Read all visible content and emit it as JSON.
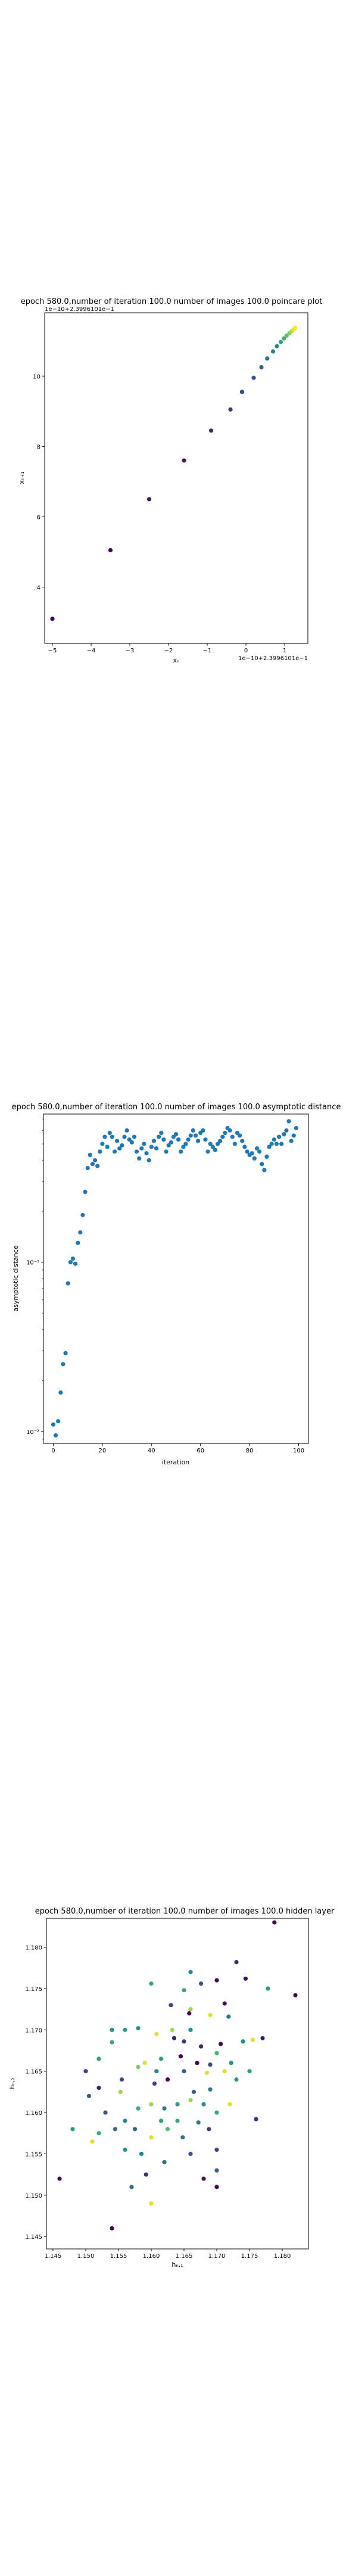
{
  "page": {
    "background": "#ffffff"
  },
  "chart_data": [
    {
      "type": "scatter",
      "title": "epoch 580.0,number of iteration 100.0  number of images 100.0 poincare plot",
      "xlabel": "xₙ",
      "ylabel": "xₙ₊₁",
      "x_offset_label": "1e−10+2.3996101e−1",
      "y_offset_label": "1e−10+2.3996101e−1",
      "xlim": [
        -5.2,
        1.6
      ],
      "ylim": [
        2.4,
        11.8
      ],
      "xticks": [
        -5,
        -4,
        -3,
        -2,
        -1,
        0,
        1
      ],
      "yticks": [
        4,
        6,
        8,
        10
      ],
      "colormap": [
        "#440154",
        "#3b528b",
        "#21918c",
        "#5ec962",
        "#fde725"
      ],
      "points": [
        {
          "x": -5.0,
          "y": 3.1,
          "c": 0.0
        },
        {
          "x": -3.5,
          "y": 5.05,
          "c": 0.02
        },
        {
          "x": -2.5,
          "y": 6.5,
          "c": 0.05
        },
        {
          "x": -1.6,
          "y": 7.6,
          "c": 0.08
        },
        {
          "x": -0.9,
          "y": 8.45,
          "c": 0.12
        },
        {
          "x": -0.4,
          "y": 9.05,
          "c": 0.18
        },
        {
          "x": -0.1,
          "y": 9.55,
          "c": 0.22
        },
        {
          "x": 0.2,
          "y": 9.95,
          "c": 0.28
        },
        {
          "x": 0.4,
          "y": 10.25,
          "c": 0.33
        },
        {
          "x": 0.55,
          "y": 10.5,
          "c": 0.38
        },
        {
          "x": 0.7,
          "y": 10.7,
          "c": 0.44
        },
        {
          "x": 0.8,
          "y": 10.85,
          "c": 0.5
        },
        {
          "x": 0.9,
          "y": 10.97,
          "c": 0.57
        },
        {
          "x": 0.98,
          "y": 11.07,
          "c": 0.64
        },
        {
          "x": 1.05,
          "y": 11.15,
          "c": 0.72
        },
        {
          "x": 1.12,
          "y": 11.22,
          "c": 0.8
        },
        {
          "x": 1.18,
          "y": 11.28,
          "c": 0.88
        },
        {
          "x": 1.23,
          "y": 11.33,
          "c": 0.95
        },
        {
          "x": 1.27,
          "y": 11.37,
          "c": 1.0
        }
      ]
    },
    {
      "type": "scatter",
      "title": "epoch 580.0,number of iteration 100.0  number of images 100.0 asymptotic distance",
      "xlabel": "iteration",
      "ylabel": "asymptotic distance",
      "yscale": "log",
      "xlim": [
        -4,
        104
      ],
      "ylim": [
        0.0085,
        0.75
      ],
      "xticks": [
        0,
        20,
        40,
        60,
        80,
        100
      ],
      "yticks": [
        {
          "v": 0.01,
          "label": "10⁻²"
        },
        {
          "v": 0.1,
          "label": "10⁻¹"
        }
      ],
      "color": "#1f77b4",
      "x": [
        0,
        1,
        2,
        3,
        4,
        5,
        6,
        7,
        8,
        9,
        10,
        11,
        12,
        13,
        14,
        15,
        16,
        17,
        18,
        19,
        20,
        21,
        22,
        23,
        24,
        25,
        26,
        27,
        28,
        29,
        30,
        31,
        32,
        33,
        34,
        35,
        36,
        37,
        38,
        39,
        40,
        41,
        42,
        43,
        44,
        45,
        46,
        47,
        48,
        49,
        50,
        51,
        52,
        53,
        54,
        55,
        56,
        57,
        58,
        59,
        60,
        61,
        62,
        63,
        64,
        65,
        66,
        67,
        68,
        69,
        70,
        71,
        72,
        73,
        74,
        75,
        76,
        77,
        78,
        79,
        80,
        81,
        82,
        83,
        84,
        85,
        86,
        87,
        88,
        89,
        90,
        91,
        92,
        93,
        94,
        95,
        96,
        97,
        98,
        99
      ],
      "y": [
        0.011,
        0.0095,
        0.0115,
        0.017,
        0.025,
        0.029,
        0.075,
        0.1,
        0.105,
        0.098,
        0.13,
        0.15,
        0.19,
        0.26,
        0.36,
        0.43,
        0.38,
        0.4,
        0.37,
        0.45,
        0.5,
        0.55,
        0.48,
        0.58,
        0.55,
        0.45,
        0.52,
        0.47,
        0.49,
        0.55,
        0.6,
        0.53,
        0.51,
        0.55,
        0.45,
        0.41,
        0.47,
        0.5,
        0.44,
        0.4,
        0.48,
        0.52,
        0.47,
        0.55,
        0.58,
        0.53,
        0.45,
        0.49,
        0.51,
        0.55,
        0.57,
        0.53,
        0.45,
        0.48,
        0.5,
        0.53,
        0.56,
        0.6,
        0.56,
        0.52,
        0.58,
        0.6,
        0.53,
        0.45,
        0.5,
        0.48,
        0.46,
        0.5,
        0.52,
        0.55,
        0.58,
        0.62,
        0.6,
        0.55,
        0.5,
        0.58,
        0.56,
        0.52,
        0.48,
        0.45,
        0.43,
        0.44,
        0.41,
        0.47,
        0.45,
        0.38,
        0.35,
        0.42,
        0.48,
        0.5,
        0.53,
        0.5,
        0.55,
        0.5,
        0.57,
        0.6,
        0.68,
        0.52,
        0.56,
        0.62
      ]
    },
    {
      "type": "scatter",
      "title": "epoch 580.0,number of iteration 100.0  number of images 100.0 hidden layer",
      "xlabel": "hₙ,₁",
      "ylabel": "hₙ,₂",
      "xlim": [
        1.144,
        1.184
      ],
      "ylim": [
        1.1435,
        1.1835
      ],
      "xticks": [
        1.145,
        1.15,
        1.155,
        1.16,
        1.165,
        1.17,
        1.175,
        1.18
      ],
      "yticks": [
        1.145,
        1.15,
        1.155,
        1.16,
        1.165,
        1.17,
        1.175,
        1.18
      ],
      "tick_labels_x": [
        "1.145",
        "1.150",
        "1.155",
        "1.160",
        "1.165",
        "1.170",
        "1.175",
        "1.180"
      ],
      "tick_labels_y": [
        "1.145",
        "1.150",
        "1.155",
        "1.160",
        "1.165",
        "1.170",
        "1.175",
        "1.180"
      ],
      "colormap": [
        "#440154",
        "#3b528b",
        "#21918c",
        "#5ec962",
        "#fde725"
      ],
      "points": [
        {
          "x": 1.1788,
          "y": 1.183,
          "c": 0.0
        },
        {
          "x": 1.182,
          "y": 1.1742,
          "c": 0.0
        },
        {
          "x": 1.173,
          "y": 1.1782,
          "c": 0.1
        },
        {
          "x": 1.1744,
          "y": 1.1762,
          "c": 0.05
        },
        {
          "x": 1.1778,
          "y": 1.175,
          "c": 0.55
        },
        {
          "x": 1.17,
          "y": 1.176,
          "c": 0.0
        },
        {
          "x": 1.1712,
          "y": 1.1732,
          "c": 0.05
        },
        {
          "x": 1.166,
          "y": 1.177,
          "c": 0.45
        },
        {
          "x": 1.165,
          "y": 1.1748,
          "c": 0.6
        },
        {
          "x": 1.1676,
          "y": 1.1756,
          "c": 0.25
        },
        {
          "x": 1.16,
          "y": 1.1756,
          "c": 0.6
        },
        {
          "x": 1.163,
          "y": 1.173,
          "c": 0.2
        },
        {
          "x": 1.166,
          "y": 1.1725,
          "c": 0.85
        },
        {
          "x": 1.169,
          "y": 1.1718,
          "c": 0.95
        },
        {
          "x": 1.1718,
          "y": 1.1716,
          "c": 0.4
        },
        {
          "x": 1.177,
          "y": 1.169,
          "c": 0.1
        },
        {
          "x": 1.174,
          "y": 1.1686,
          "c": 0.5
        },
        {
          "x": 1.1755,
          "y": 1.1688,
          "c": 0.95
        },
        {
          "x": 1.1706,
          "y": 1.1683,
          "c": 0.0
        },
        {
          "x": 1.1676,
          "y": 1.168,
          "c": 0.1
        },
        {
          "x": 1.165,
          "y": 1.1686,
          "c": 0.2
        },
        {
          "x": 1.1632,
          "y": 1.17,
          "c": 0.85
        },
        {
          "x": 1.1608,
          "y": 1.1695,
          "c": 0.95
        },
        {
          "x": 1.158,
          "y": 1.1702,
          "c": 0.5
        },
        {
          "x": 1.156,
          "y": 1.17,
          "c": 0.55
        },
        {
          "x": 1.154,
          "y": 1.1685,
          "c": 0.6
        },
        {
          "x": 1.152,
          "y": 1.1665,
          "c": 0.55
        },
        {
          "x": 1.15,
          "y": 1.165,
          "c": 0.2
        },
        {
          "x": 1.152,
          "y": 1.163,
          "c": 0.1
        },
        {
          "x": 1.1555,
          "y": 1.164,
          "c": 0.25
        },
        {
          "x": 1.158,
          "y": 1.1655,
          "c": 0.8
        },
        {
          "x": 1.1608,
          "y": 1.165,
          "c": 0.45
        },
        {
          "x": 1.1625,
          "y": 1.164,
          "c": 0.0
        },
        {
          "x": 1.165,
          "y": 1.165,
          "c": 0.3
        },
        {
          "x": 1.167,
          "y": 1.166,
          "c": 0.0
        },
        {
          "x": 1.169,
          "y": 1.1658,
          "c": 0.2
        },
        {
          "x": 1.1712,
          "y": 1.165,
          "c": 0.95
        },
        {
          "x": 1.173,
          "y": 1.164,
          "c": 0.55
        },
        {
          "x": 1.175,
          "y": 1.165,
          "c": 0.55
        },
        {
          "x": 1.169,
          "y": 1.1628,
          "c": 0.4
        },
        {
          "x": 1.168,
          "y": 1.161,
          "c": 0.5
        },
        {
          "x": 1.166,
          "y": 1.1615,
          "c": 0.85
        },
        {
          "x": 1.164,
          "y": 1.161,
          "c": 0.55
        },
        {
          "x": 1.162,
          "y": 1.1605,
          "c": 0.4
        },
        {
          "x": 1.16,
          "y": 1.161,
          "c": 0.85
        },
        {
          "x": 1.158,
          "y": 1.1605,
          "c": 0.6
        },
        {
          "x": 1.156,
          "y": 1.159,
          "c": 0.45
        },
        {
          "x": 1.153,
          "y": 1.16,
          "c": 0.25
        },
        {
          "x": 1.1505,
          "y": 1.162,
          "c": 0.3
        },
        {
          "x": 1.148,
          "y": 1.158,
          "c": 0.55
        },
        {
          "x": 1.152,
          "y": 1.1575,
          "c": 0.6
        },
        {
          "x": 1.1545,
          "y": 1.158,
          "c": 0.35
        },
        {
          "x": 1.1575,
          "y": 1.158,
          "c": 0.35
        },
        {
          "x": 1.16,
          "y": 1.157,
          "c": 0.95
        },
        {
          "x": 1.1625,
          "y": 1.158,
          "c": 0.7
        },
        {
          "x": 1.1648,
          "y": 1.157,
          "c": 0.4
        },
        {
          "x": 1.1672,
          "y": 1.1588,
          "c": 0.45
        },
        {
          "x": 1.17,
          "y": 1.16,
          "c": 0.6
        },
        {
          "x": 1.172,
          "y": 1.161,
          "c": 0.95
        },
        {
          "x": 1.176,
          "y": 1.1592,
          "c": 0.15
        },
        {
          "x": 1.156,
          "y": 1.1555,
          "c": 0.5
        },
        {
          "x": 1.1585,
          "y": 1.155,
          "c": 0.45
        },
        {
          "x": 1.162,
          "y": 1.154,
          "c": 0.35
        },
        {
          "x": 1.166,
          "y": 1.155,
          "c": 0.25
        },
        {
          "x": 1.17,
          "y": 1.153,
          "c": 0.3
        },
        {
          "x": 1.168,
          "y": 1.152,
          "c": 0.05
        },
        {
          "x": 1.17,
          "y": 1.151,
          "c": 0.0
        },
        {
          "x": 1.16,
          "y": 1.149,
          "c": 0.95
        },
        {
          "x": 1.157,
          "y": 1.151,
          "c": 0.35
        },
        {
          "x": 1.146,
          "y": 1.152,
          "c": 0.0
        },
        {
          "x": 1.154,
          "y": 1.146,
          "c": 0.0
        },
        {
          "x": 1.151,
          "y": 1.1565,
          "c": 0.95
        },
        {
          "x": 1.1592,
          "y": 1.1525,
          "c": 0.15
        },
        {
          "x": 1.164,
          "y": 1.159,
          "c": 0.6
        },
        {
          "x": 1.1665,
          "y": 1.1625,
          "c": 0.3
        },
        {
          "x": 1.1605,
          "y": 1.1635,
          "c": 0.2
        },
        {
          "x": 1.1635,
          "y": 1.169,
          "c": 0.1
        },
        {
          "x": 1.166,
          "y": 1.17,
          "c": 0.5
        },
        {
          "x": 1.17,
          "y": 1.1672,
          "c": 0.65
        },
        {
          "x": 1.1645,
          "y": 1.1668,
          "c": 0.0
        },
        {
          "x": 1.159,
          "y": 1.166,
          "c": 0.95
        },
        {
          "x": 1.1615,
          "y": 1.1665,
          "c": 0.55
        },
        {
          "x": 1.154,
          "y": 1.17,
          "c": 0.5
        },
        {
          "x": 1.17,
          "y": 1.1555,
          "c": 0.2
        },
        {
          "x": 1.1658,
          "y": 1.172,
          "c": 0.0
        },
        {
          "x": 1.1685,
          "y": 1.1648,
          "c": 0.95
        },
        {
          "x": 1.1722,
          "y": 1.166,
          "c": 0.5
        },
        {
          "x": 1.1615,
          "y": 1.159,
          "c": 0.55
        },
        {
          "x": 1.1688,
          "y": 1.158,
          "c": 0.2
        },
        {
          "x": 1.1553,
          "y": 1.1625,
          "c": 0.85
        }
      ]
    }
  ]
}
